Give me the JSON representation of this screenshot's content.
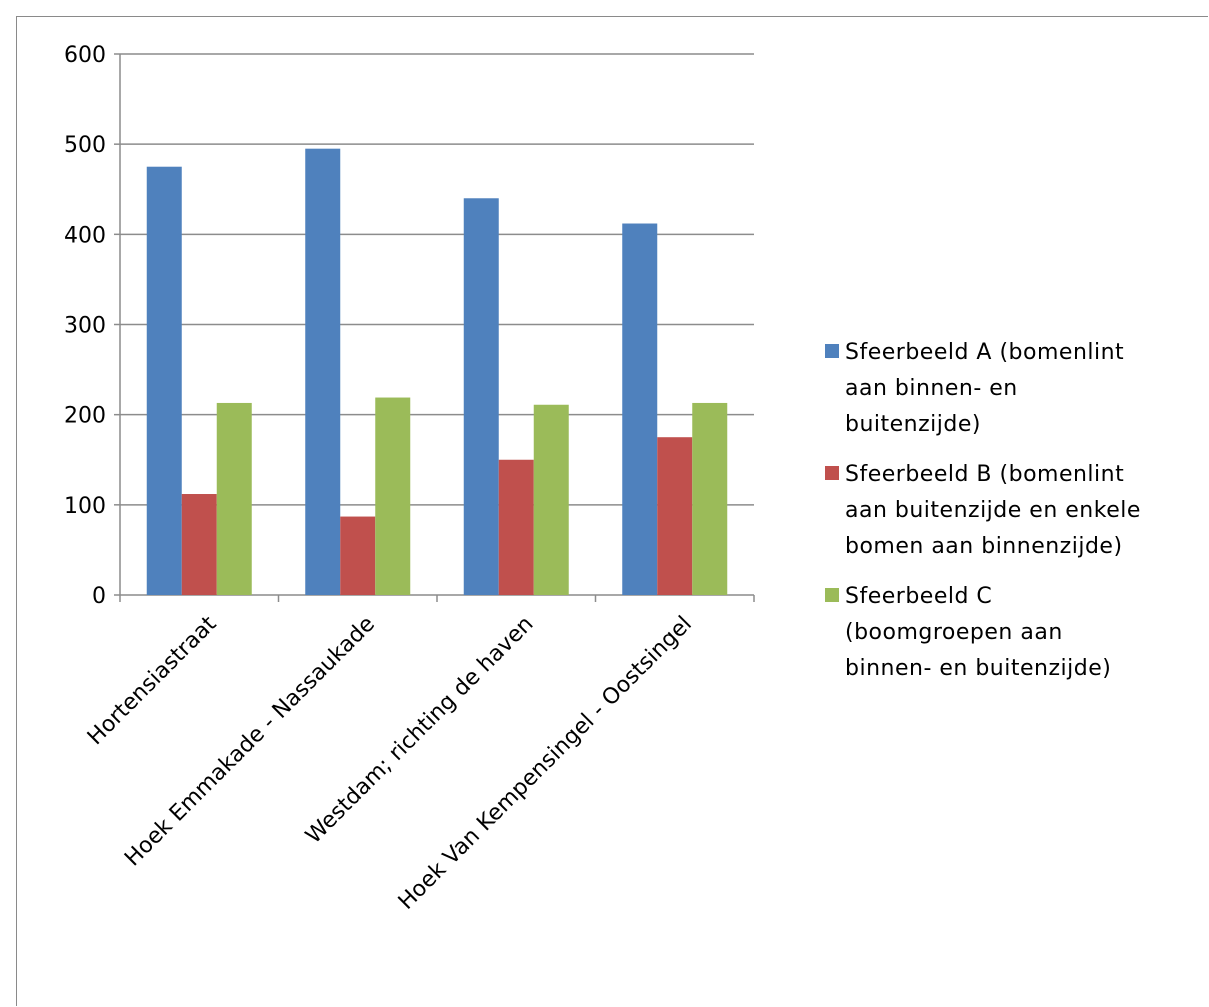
{
  "chart_data": {
    "type": "bar",
    "title": "",
    "xlabel": "",
    "ylabel": "",
    "ylim": [
      0,
      600
    ],
    "yticks": [
      0,
      100,
      200,
      300,
      400,
      500,
      600
    ],
    "grid": true,
    "legend_position": "right",
    "categories": [
      "Hortensiastraat",
      "Hoek Emmakade - Nassaukade",
      "Westdam; richting de haven",
      "Hoek Van Kempensingel - Oostsingel"
    ],
    "series": [
      {
        "name": "Sfeerbeeld A (bomenlint\naan binnen- en\nbuitenzijde)",
        "color": "#4f81bd",
        "values": [
          475,
          495,
          440,
          412
        ]
      },
      {
        "name": "Sfeerbeeld B (bomenlint\naan buitenzijde en enkele\nbomen aan binnenzijde)",
        "color": "#c0504d",
        "values": [
          112,
          87,
          150,
          175
        ]
      },
      {
        "name": "Sfeerbeeld C\n(boomgroepen aan\nbinnen- en buitenzijde)",
        "color": "#9bbb59",
        "values": [
          213,
          219,
          211,
          213
        ]
      }
    ]
  }
}
